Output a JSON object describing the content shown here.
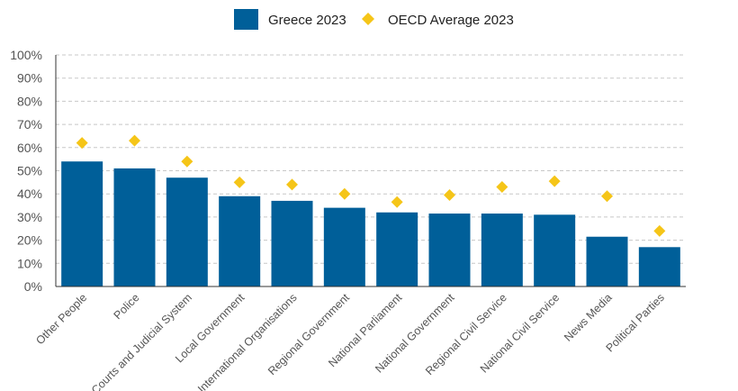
{
  "chart_data": {
    "type": "bar",
    "title": "",
    "xlabel": "",
    "ylabel": "",
    "ylim": [
      0,
      100
    ],
    "yticks": [
      "0%",
      "10%",
      "20%",
      "30%",
      "40%",
      "50%",
      "60%",
      "70%",
      "80%",
      "90%",
      "100%"
    ],
    "grid": true,
    "legend_position": "top-center",
    "categories": [
      "Other People",
      "Police",
      "Courts and Judicial System",
      "Local Government",
      "International Organisations",
      "Regional Government",
      "National Parliament",
      "National Government",
      "Regional Civil Service",
      "National Civil Service",
      "News Media",
      "Political Parties"
    ],
    "series": [
      {
        "name": "Greece 2023",
        "kind": "bar",
        "color": "#005f99",
        "values": [
          54,
          51,
          47,
          39,
          37,
          34,
          32,
          31.5,
          31.5,
          31,
          21.5,
          17
        ]
      },
      {
        "name": "OECD Average 2023",
        "kind": "marker",
        "marker": "diamond",
        "color": "#f5c518",
        "values": [
          62,
          63,
          54,
          45,
          44,
          40,
          36.5,
          39.5,
          43,
          45.5,
          39,
          24
        ]
      }
    ]
  }
}
